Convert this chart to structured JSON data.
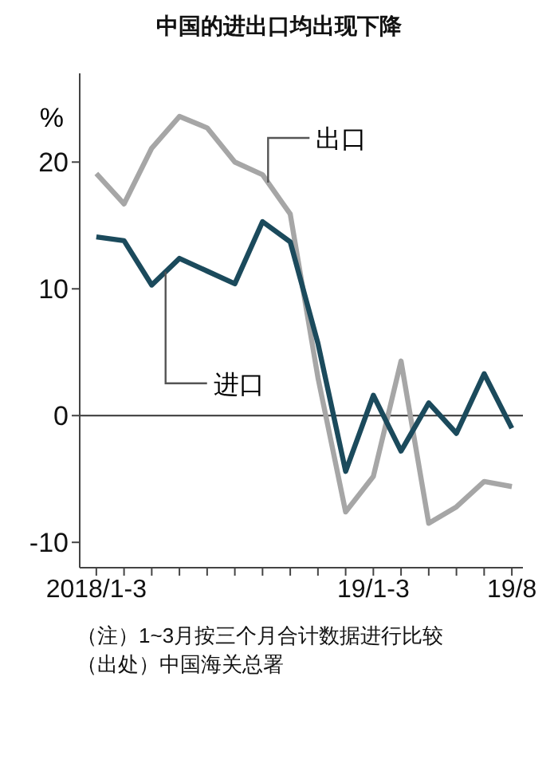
{
  "chart_data": {
    "type": "line",
    "title": "中国的进出口均出现下降",
    "ylabel": "%",
    "categories": [
      "2018/1-3",
      null,
      null,
      null,
      null,
      null,
      null,
      null,
      null,
      null,
      "19/1-3",
      null,
      null,
      null,
      null,
      "19/8"
    ],
    "series": [
      {
        "name": "出口",
        "color": "#a6a6a6",
        "values": [
          19.1,
          16.7,
          21.1,
          23.6,
          22.7,
          20.0,
          19.0,
          15.9,
          3.0,
          -7.6,
          -4.8,
          4.3,
          -8.5,
          -7.2,
          -5.2,
          -5.6
        ]
      },
      {
        "name": "进口",
        "color": "#1b4a5c",
        "values": [
          14.1,
          13.8,
          10.3,
          12.4,
          11.4,
          10.4,
          15.3,
          13.7,
          5.7,
          -4.4,
          1.6,
          -2.8,
          1.0,
          -1.4,
          3.3,
          -1.0
        ]
      }
    ],
    "ylim": [
      -12,
      27
    ],
    "yticks": [
      -10,
      0,
      10,
      20
    ],
    "grid": false,
    "legend": false,
    "ref_lines": [
      {
        "axis": "y",
        "value": 0,
        "color": "#333333"
      }
    ],
    "annotations": [
      "（注）1~3月按三个月合计数据进行比较",
      "（出处）中国海关总署"
    ]
  }
}
